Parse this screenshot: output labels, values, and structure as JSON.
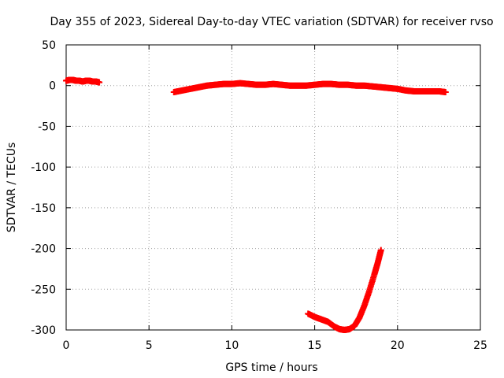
{
  "chart_data": {
    "type": "scatter",
    "title": "Day 355 of 2023, Sidereal Day-to-day VTEC variation (SDTVAR) for receiver rvso",
    "xlabel": "GPS time / hours",
    "ylabel": "SDTVAR / TECUs",
    "xlim": [
      0,
      25
    ],
    "ylim": [
      -300,
      50
    ],
    "xticks": [
      0,
      5,
      10,
      15,
      20,
      25
    ],
    "yticks": [
      50,
      0,
      -50,
      -100,
      -150,
      -200,
      -250,
      -300
    ],
    "grid": true,
    "marker": "plus",
    "series": [
      {
        "color": "#ff0000",
        "segments": [
          {
            "x": [
              0.0,
              0.2,
              0.4,
              0.6,
              0.8,
              1.0,
              1.2,
              1.4,
              1.6,
              1.8,
              2.0
            ],
            "y": [
              6,
              7,
              7,
              6,
              6,
              5,
              6,
              6,
              5,
              5,
              4
            ]
          },
          {
            "x": [
              6.5,
              7.0,
              7.5,
              8.0,
              8.5,
              9.0,
              9.5,
              10.0,
              10.5,
              11.0,
              11.5,
              12.0,
              12.5,
              13.0,
              13.5,
              14.0,
              14.5,
              15.0,
              15.5,
              16.0,
              16.5,
              17.0,
              17.5,
              18.0,
              18.5,
              19.0,
              19.5,
              20.0,
              20.5,
              21.0,
              21.5,
              22.0,
              22.5,
              22.9
            ],
            "y": [
              -8,
              -6,
              -4,
              -2,
              0,
              1,
              2,
              2,
              3,
              2,
              1,
              1,
              2,
              1,
              0,
              0,
              0,
              1,
              2,
              2,
              1,
              1,
              0,
              0,
              -1,
              -2,
              -3,
              -4,
              -6,
              -7,
              -7,
              -7,
              -7,
              -8
            ]
          },
          {
            "x": [
              14.6,
              15.0,
              15.4,
              15.8,
              16.2,
              16.5,
              16.8,
              17.1,
              17.4,
              17.7,
              18.0,
              18.3,
              18.6,
              18.8,
              19.0
            ],
            "y": [
              -280,
              -284,
              -287,
              -290,
              -296,
              -299,
              -300,
              -299,
              -295,
              -285,
              -270,
              -252,
              -232,
              -218,
              -202
            ]
          }
        ]
      }
    ]
  }
}
